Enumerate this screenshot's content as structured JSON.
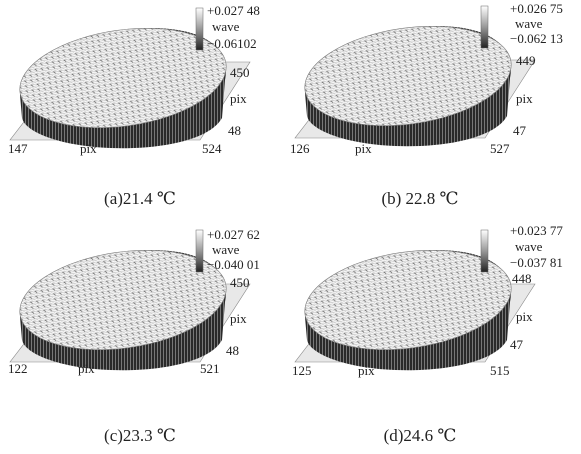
{
  "figure": {
    "panels": [
      {
        "colorbar_max": "+0.027 48",
        "colorbar_unit": "wave",
        "colorbar_min": "−0.06102",
        "y_max": "450",
        "y_label": "pix",
        "y_min": "48",
        "x_min": "147",
        "x_label": "pix",
        "x_max": "524",
        "caption": "(a)21.4 ℃"
      },
      {
        "colorbar_max": "+0.026 75",
        "colorbar_unit": "wave",
        "colorbar_min": "−0.062 13",
        "y_max": "449",
        "y_label": "pix",
        "y_min": "47",
        "x_min": "126",
        "x_label": "pix",
        "x_max": "527",
        "caption": "(b) 22.8 ℃"
      },
      {
        "colorbar_max": "+0.027 62",
        "colorbar_unit": "wave",
        "colorbar_min": "−0.040 01",
        "y_max": "450",
        "y_label": "pix",
        "y_min": "48",
        "x_min": "122",
        "x_label": "pix",
        "x_max": "521",
        "caption": "(c)23.3 ℃"
      },
      {
        "colorbar_max": "+0.023 77",
        "colorbar_unit": "wave",
        "colorbar_min": "−0.037 81",
        "y_max": "448",
        "y_label": "pix",
        "y_min": "47",
        "x_min": "125",
        "x_label": "pix",
        "x_max": "515",
        "caption": "(d)24.6 ℃"
      }
    ]
  }
}
